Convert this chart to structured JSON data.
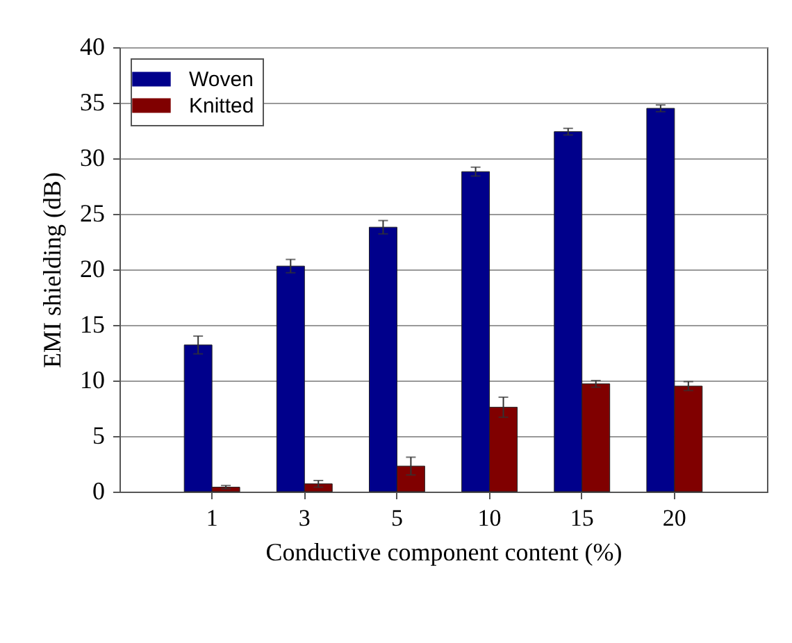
{
  "chart_data": {
    "type": "bar",
    "xlabel": "Conductive component content (%)",
    "ylabel": "EMI shielding (dB)",
    "categories": [
      "1",
      "3",
      "5",
      "10",
      "15",
      "20"
    ],
    "series": [
      {
        "name": "Woven",
        "color": "#00008b",
        "values": [
          13.2,
          20.3,
          23.8,
          28.8,
          32.4,
          34.5
        ],
        "errors": [
          0.8,
          0.6,
          0.6,
          0.4,
          0.3,
          0.3
        ]
      },
      {
        "name": "Knitted",
        "color": "#800000",
        "values": [
          0.4,
          0.7,
          2.3,
          7.6,
          9.7,
          9.5
        ],
        "errors": [
          0.15,
          0.3,
          0.8,
          0.9,
          0.3,
          0.4
        ]
      }
    ],
    "ylim": [
      0,
      40
    ],
    "yticks": [
      0,
      5,
      10,
      15,
      20,
      25,
      30,
      35,
      40
    ],
    "grid": "y",
    "legend": "top left"
  }
}
